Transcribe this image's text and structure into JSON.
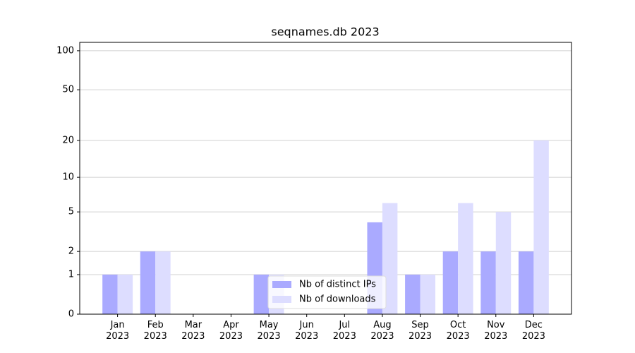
{
  "chart_data": {
    "type": "bar",
    "title": "seqnames.db 2023",
    "categories": [
      "Jan\n2023",
      "Feb\n2023",
      "Mar\n2023",
      "Apr\n2023",
      "May\n2023",
      "Jun\n2023",
      "Jul\n2023",
      "Aug\n2023",
      "Sep\n2023",
      "Oct\n2023",
      "Nov\n2023",
      "Dec\n2023"
    ],
    "series": [
      {
        "name": "Nb of distinct IPs",
        "color": "#aaaaff",
        "values": [
          1,
          2,
          0,
          0,
          1,
          0,
          0,
          4,
          1,
          2,
          2,
          2
        ]
      },
      {
        "name": "Nb of downloads",
        "color": "#ddddff",
        "values": [
          1,
          2,
          0,
          0,
          1,
          0,
          0,
          6,
          1,
          6,
          5,
          20
        ]
      }
    ],
    "yscale": "log1p",
    "ylim": [
      0,
      116
    ],
    "yticks": [
      0,
      1,
      2,
      5,
      10,
      20,
      50,
      100
    ],
    "grid": true,
    "legend": "lower center"
  }
}
